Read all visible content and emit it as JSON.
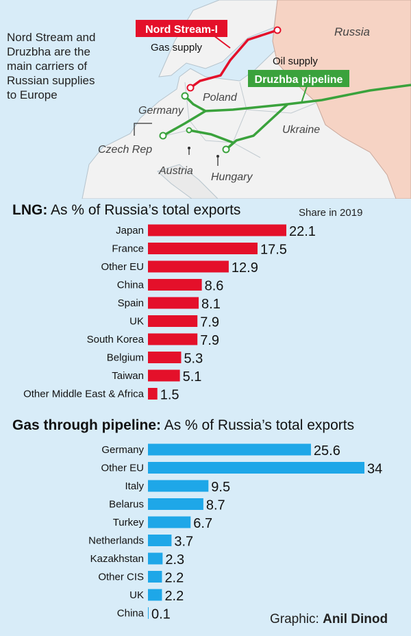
{
  "intro_lines": [
    "Nord Stream and",
    "Druzbha are the",
    "main carriers of",
    "Russian supplies",
    "to Europe"
  ],
  "map": {
    "nord_stream_label": "Nord Stream-I",
    "gas_supply_label": "Gas supply",
    "oil_supply_label": "Oil supply",
    "druzhba_label": "Druzhba pipeline",
    "regions": {
      "russia": "Russia",
      "poland": "Poland",
      "germany": "Germany",
      "ukraine": "Ukraine",
      "czech": "Czech Rep",
      "austria": "Austria",
      "hungary": "Hungary"
    },
    "colors": {
      "nord_stream": "#e4102a",
      "druzhba": "#3aa23c",
      "russia": "#f6d3c4",
      "land": "#f2f2f2",
      "sea": "#d8ecf8"
    }
  },
  "share_label": "Share in 2019",
  "credit": {
    "prefix": "Graphic:",
    "name": "Anil Dinod"
  },
  "chart_data": [
    {
      "type": "bar",
      "orientation": "horizontal",
      "title_bold": "LNG:",
      "title_rest": "As % of Russia’s total exports",
      "color": "#e4102a",
      "categories": [
        "Japan",
        "France",
        "Other EU",
        "China",
        "Spain",
        "UK",
        "South Korea",
        "Belgium",
        "Taiwan",
        "Other Middle East & Africa"
      ],
      "values": [
        22.1,
        17.5,
        12.9,
        8.6,
        8.1,
        7.9,
        7.9,
        5.3,
        5.1,
        1.5
      ],
      "labels": [
        "22.1",
        "17.5",
        "12.9",
        "8.6",
        "8.1",
        "7.9",
        "7.9",
        "5.3",
        "5.1",
        "1.5"
      ]
    },
    {
      "type": "bar",
      "orientation": "horizontal",
      "title_bold": "Gas through pipeline:",
      "title_rest": "As % of Russia’s total exports",
      "color": "#1ea7e8",
      "categories": [
        "Germany",
        "Other EU",
        "Italy",
        "Belarus",
        "Turkey",
        "Netherlands",
        "Kazakhstan",
        "Other CIS",
        "UK",
        "China"
      ],
      "values": [
        25.6,
        34,
        9.5,
        8.7,
        6.7,
        3.7,
        2.3,
        2.2,
        2.2,
        0.1
      ],
      "labels": [
        "25.6",
        "34",
        "9.5",
        "8.7",
        "6.7",
        "3.7",
        "2.3",
        "2.2",
        "2.2",
        "0.1"
      ]
    }
  ]
}
